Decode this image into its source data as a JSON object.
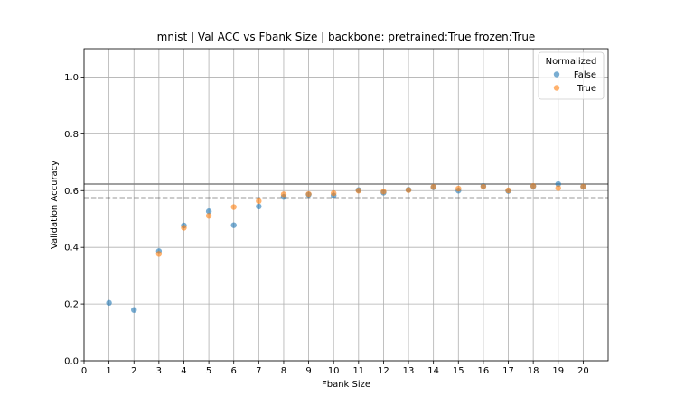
{
  "chart_data": {
    "type": "scatter",
    "title": "mnist | Val ACC vs Fbank Size | backbone: pretrained:True frozen:True",
    "xlabel": "Fbank Size",
    "ylabel": "Validation Accuracy",
    "xlim": [
      0,
      21
    ],
    "ylim": [
      0,
      1.1
    ],
    "x_ticks": [
      "0",
      "1",
      "2",
      "3",
      "4",
      "5",
      "6",
      "7",
      "8",
      "9",
      "10",
      "11",
      "12",
      "13",
      "14",
      "15",
      "16",
      "17",
      "18",
      "19",
      "20"
    ],
    "y_ticks": [
      "0.0",
      "0.2",
      "0.4",
      "0.6",
      "0.8",
      "1.0"
    ],
    "grid": true,
    "legend": {
      "title": "Normalized",
      "placement": "top-right"
    },
    "reference_lines": [
      {
        "y": 0.623,
        "style": "solid",
        "color": "#808080"
      },
      {
        "y": 0.574,
        "style": "dashed",
        "color": "#333333"
      }
    ],
    "series": [
      {
        "name": "False",
        "color": "#1f77b4",
        "x": [
          1,
          2,
          3,
          4,
          5,
          6,
          7,
          8,
          9,
          10,
          11,
          12,
          13,
          14,
          15,
          16,
          17,
          18,
          19,
          20
        ],
        "y": [
          0.204,
          0.179,
          0.387,
          0.477,
          0.527,
          0.478,
          0.544,
          0.578,
          0.586,
          0.583,
          0.602,
          0.593,
          0.603,
          0.612,
          0.6,
          0.616,
          0.599,
          0.615,
          0.623,
          0.614
        ]
      },
      {
        "name": "True",
        "color": "#ff7f0e",
        "x": [
          3,
          4,
          5,
          6,
          7,
          8,
          9,
          10,
          11,
          12,
          13,
          14,
          15,
          16,
          17,
          18,
          19,
          20
        ],
        "y": [
          0.377,
          0.469,
          0.511,
          0.542,
          0.563,
          0.587,
          0.588,
          0.591,
          0.6,
          0.597,
          0.602,
          0.613,
          0.607,
          0.614,
          0.601,
          0.616,
          0.609,
          0.614
        ]
      }
    ]
  }
}
